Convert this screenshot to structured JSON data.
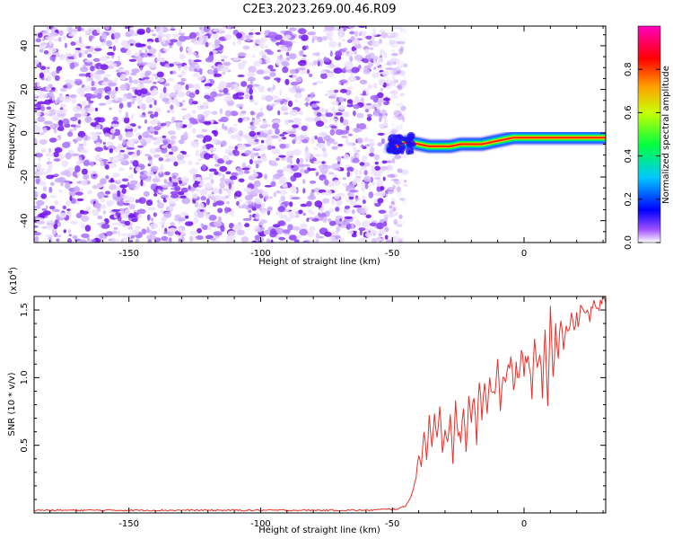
{
  "title": "C2E3.2023.269.00.46.R09",
  "chart_data": [
    {
      "type": "heatmap",
      "xlabel": "Height of straight line (km)",
      "ylabel": "Frequency (Hz)",
      "xlim": [
        -186,
        31
      ],
      "ylim": [
        -50,
        49
      ],
      "xticks": [
        -150,
        -100,
        -50,
        0
      ],
      "yticks": [
        -40,
        -20,
        0,
        20,
        40
      ],
      "noise_region_x": [
        -186,
        -48
      ],
      "signal_track": {
        "x": [
          -50,
          -47,
          -44,
          -40,
          -36,
          -32,
          -28,
          -24,
          -20,
          -16,
          -12,
          -8,
          -4,
          0,
          4,
          8,
          12,
          16,
          20,
          24,
          28,
          31
        ],
        "y": [
          -7,
          -5,
          -4,
          -5,
          -6,
          -6,
          -6,
          -5,
          -5,
          -5,
          -4,
          -3,
          -2,
          -2,
          -2,
          -2,
          -2,
          -2,
          -2,
          -2,
          -2,
          -2
        ]
      },
      "colorbar": {
        "label": "Normalized spectral amplitude",
        "range": [
          0,
          1
        ],
        "ticks": [
          0.0,
          0.2,
          0.4,
          0.6,
          0.8
        ],
        "colormap": "rainbow (white-violet-blue-cyan-green-yellow-orange-red-magenta)"
      }
    },
    {
      "type": "line",
      "xlabel": "Height of straight line (km)",
      "ylabel": "SNR (10 * v/v)",
      "y_multiplier": "(x10",
      "y_multiplier_exp": "4",
      "y_multiplier_close": ")",
      "xlim": [
        -186,
        31
      ],
      "ylim": [
        0,
        1.6
      ],
      "xticks": [
        -150,
        -100,
        -50,
        0
      ],
      "yticks": [
        0.5,
        1.0,
        1.5
      ],
      "ytick_labels": [
        "0.5",
        "1.0",
        "1.5"
      ],
      "series": [
        {
          "color": "#e8302a",
          "x": [
            -186,
            -150,
            -100,
            -60,
            -48,
            -45,
            -43,
            -41,
            -40,
            -39,
            -38,
            -37,
            -36,
            -35,
            -34,
            -33,
            -32,
            -31,
            -30,
            -29,
            -28,
            -27,
            -26,
            -25,
            -24,
            -23,
            -22,
            -21,
            -20,
            -19,
            -18,
            -17,
            -16,
            -15,
            -14,
            -13,
            -12,
            -11,
            -10,
            -9,
            -8,
            -7,
            -6,
            -5,
            -4,
            -3,
            -2,
            -1,
            0,
            1,
            2,
            3,
            4,
            5,
            6,
            7,
            8,
            9,
            10,
            11,
            12,
            13,
            14,
            15,
            16,
            17,
            18,
            19,
            20,
            21,
            22,
            23,
            24,
            25,
            26,
            27,
            28,
            29,
            30,
            31
          ],
          "y": [
            0.02,
            0.02,
            0.02,
            0.02,
            0.03,
            0.05,
            0.12,
            0.25,
            0.45,
            0.35,
            0.6,
            0.4,
            0.7,
            0.5,
            0.75,
            0.55,
            0.8,
            0.45,
            0.65,
            0.5,
            0.7,
            0.35,
            0.8,
            0.6,
            0.55,
            0.75,
            0.45,
            0.85,
            0.65,
            0.9,
            0.5,
            1.0,
            0.7,
            0.95,
            0.75,
            1.05,
            0.85,
            0.9,
            1.1,
            0.8,
            1.0,
            0.95,
            1.05,
            1.15,
            0.9,
            1.1,
            1.0,
            1.2,
            1.05,
            1.15,
            1.1,
            0.85,
            1.25,
            1.1,
            1.2,
            0.9,
            1.3,
            0.75,
            1.55,
            1.0,
            1.35,
            1.2,
            1.45,
            1.15,
            1.4,
            1.3,
            1.5,
            1.35,
            1.45,
            1.4,
            1.55,
            1.45,
            1.5,
            1.45,
            1.55,
            1.5,
            1.55,
            1.52,
            1.58,
            1.55
          ]
        }
      ]
    }
  ]
}
